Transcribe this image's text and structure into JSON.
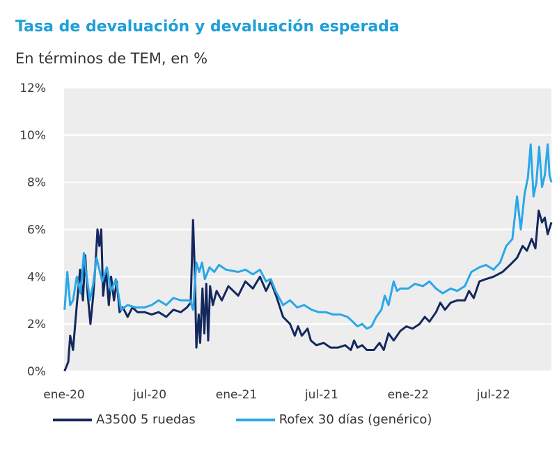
{
  "chart_data": {
    "type": "line",
    "title": "Tasa de devaluación y devaluación esperada",
    "subtitle": "En términos de TEM, en %",
    "xlabel": "",
    "ylabel": "",
    "ylim": [
      0,
      12
    ],
    "grid": "horizontal",
    "legend_position": "bottom",
    "x_range": [
      "2020-01-01",
      "2022-11-01"
    ],
    "x_tick_labels": [
      {
        "date": "2020-01-01",
        "label": "ene-20"
      },
      {
        "date": "2020-07-01",
        "label": "jul-20"
      },
      {
        "date": "2021-01-01",
        "label": "ene-21"
      },
      {
        "date": "2021-07-01",
        "label": "jul-21"
      },
      {
        "date": "2022-01-01",
        "label": "ene-22"
      },
      {
        "date": "2022-07-01",
        "label": "jul-22"
      }
    ],
    "y_ticks": [
      {
        "value": 0,
        "label": "0%"
      },
      {
        "value": 2,
        "label": "2%"
      },
      {
        "value": 4,
        "label": "4%"
      },
      {
        "value": 6,
        "label": "6%"
      },
      {
        "value": 8,
        "label": "8%"
      },
      {
        "value": 10,
        "label": "10%"
      },
      {
        "value": 12,
        "label": "12%"
      }
    ],
    "series": [
      {
        "name": "A3500 5 ruedas",
        "color": "#14285e",
        "points": [
          [
            "2020-01-02",
            0.0
          ],
          [
            "2020-01-10",
            0.4
          ],
          [
            "2020-01-14",
            1.5
          ],
          [
            "2020-01-20",
            0.9
          ],
          [
            "2020-01-28",
            2.8
          ],
          [
            "2020-02-04",
            4.3
          ],
          [
            "2020-02-10",
            3.0
          ],
          [
            "2020-02-15",
            4.9
          ],
          [
            "2020-02-20",
            3.3
          ],
          [
            "2020-02-26",
            2.0
          ],
          [
            "2020-03-03",
            3.2
          ],
          [
            "2020-03-08",
            4.6
          ],
          [
            "2020-03-12",
            6.0
          ],
          [
            "2020-03-16",
            5.3
          ],
          [
            "2020-03-20",
            6.0
          ],
          [
            "2020-03-24",
            3.2
          ],
          [
            "2020-03-30",
            4.3
          ],
          [
            "2020-04-05",
            2.8
          ],
          [
            "2020-04-10",
            4.0
          ],
          [
            "2020-04-16",
            3.0
          ],
          [
            "2020-04-22",
            3.8
          ],
          [
            "2020-04-28",
            2.5
          ],
          [
            "2020-05-05",
            2.7
          ],
          [
            "2020-05-15",
            2.3
          ],
          [
            "2020-05-25",
            2.7
          ],
          [
            "2020-06-05",
            2.5
          ],
          [
            "2020-06-20",
            2.5
          ],
          [
            "2020-07-05",
            2.4
          ],
          [
            "2020-07-20",
            2.5
          ],
          [
            "2020-08-05",
            2.3
          ],
          [
            "2020-08-20",
            2.6
          ],
          [
            "2020-09-05",
            2.5
          ],
          [
            "2020-09-18",
            2.7
          ],
          [
            "2020-09-26",
            2.9
          ],
          [
            "2020-10-01",
            6.4
          ],
          [
            "2020-10-05",
            4.0
          ],
          [
            "2020-10-08",
            1.0
          ],
          [
            "2020-10-13",
            2.4
          ],
          [
            "2020-10-16",
            1.2
          ],
          [
            "2020-10-21",
            3.5
          ],
          [
            "2020-10-25",
            1.6
          ],
          [
            "2020-10-29",
            3.7
          ],
          [
            "2020-11-02",
            1.3
          ],
          [
            "2020-11-06",
            3.6
          ],
          [
            "2020-11-12",
            2.8
          ],
          [
            "2020-11-20",
            3.4
          ],
          [
            "2020-12-01",
            3.0
          ],
          [
            "2020-12-15",
            3.6
          ],
          [
            "2021-01-05",
            3.2
          ],
          [
            "2021-01-20",
            3.8
          ],
          [
            "2021-02-05",
            3.5
          ],
          [
            "2021-02-20",
            4.0
          ],
          [
            "2021-03-05",
            3.4
          ],
          [
            "2021-03-15",
            3.8
          ],
          [
            "2021-03-28",
            3.1
          ],
          [
            "2021-04-10",
            2.3
          ],
          [
            "2021-04-25",
            2.0
          ],
          [
            "2021-05-05",
            1.5
          ],
          [
            "2021-05-12",
            1.9
          ],
          [
            "2021-05-20",
            1.5
          ],
          [
            "2021-06-01",
            1.8
          ],
          [
            "2021-06-08",
            1.3
          ],
          [
            "2021-06-20",
            1.1
          ],
          [
            "2021-07-05",
            1.2
          ],
          [
            "2021-07-20",
            1.0
          ],
          [
            "2021-08-05",
            1.0
          ],
          [
            "2021-08-20",
            1.1
          ],
          [
            "2021-09-01",
            0.9
          ],
          [
            "2021-09-08",
            1.3
          ],
          [
            "2021-09-15",
            1.0
          ],
          [
            "2021-09-25",
            1.1
          ],
          [
            "2021-10-05",
            0.9
          ],
          [
            "2021-10-20",
            0.9
          ],
          [
            "2021-11-01",
            1.2
          ],
          [
            "2021-11-10",
            0.9
          ],
          [
            "2021-11-20",
            1.6
          ],
          [
            "2021-12-01",
            1.3
          ],
          [
            "2021-12-15",
            1.7
          ],
          [
            "2021-12-28",
            1.9
          ],
          [
            "2022-01-10",
            1.8
          ],
          [
            "2022-01-25",
            2.0
          ],
          [
            "2022-02-05",
            2.3
          ],
          [
            "2022-02-15",
            2.1
          ],
          [
            "2022-03-01",
            2.5
          ],
          [
            "2022-03-10",
            2.9
          ],
          [
            "2022-03-20",
            2.6
          ],
          [
            "2022-04-01",
            2.9
          ],
          [
            "2022-04-15",
            3.0
          ],
          [
            "2022-05-01",
            3.0
          ],
          [
            "2022-05-10",
            3.4
          ],
          [
            "2022-05-20",
            3.1
          ],
          [
            "2022-06-01",
            3.8
          ],
          [
            "2022-06-15",
            3.9
          ],
          [
            "2022-07-01",
            4.0
          ],
          [
            "2022-07-20",
            4.2
          ],
          [
            "2022-08-05",
            4.5
          ],
          [
            "2022-08-20",
            4.8
          ],
          [
            "2022-09-01",
            5.3
          ],
          [
            "2022-09-10",
            5.1
          ],
          [
            "2022-09-20",
            5.6
          ],
          [
            "2022-09-28",
            5.2
          ],
          [
            "2022-10-05",
            6.8
          ],
          [
            "2022-10-12",
            6.3
          ],
          [
            "2022-10-18",
            6.5
          ],
          [
            "2022-10-24",
            5.8
          ],
          [
            "2022-11-01",
            6.3
          ]
        ]
      },
      {
        "name": "Rofex 30 días (genérico)",
        "color": "#2aa7e8",
        "points": [
          [
            "2020-01-02",
            2.6
          ],
          [
            "2020-01-08",
            4.2
          ],
          [
            "2020-01-14",
            2.8
          ],
          [
            "2020-01-20",
            3.0
          ],
          [
            "2020-01-28",
            4.0
          ],
          [
            "2020-02-05",
            3.3
          ],
          [
            "2020-02-12",
            5.0
          ],
          [
            "2020-02-18",
            4.0
          ],
          [
            "2020-02-25",
            3.0
          ],
          [
            "2020-03-03",
            3.7
          ],
          [
            "2020-03-10",
            4.8
          ],
          [
            "2020-03-16",
            4.3
          ],
          [
            "2020-03-22",
            3.8
          ],
          [
            "2020-04-01",
            4.4
          ],
          [
            "2020-04-10",
            3.4
          ],
          [
            "2020-04-20",
            3.9
          ],
          [
            "2020-05-01",
            2.6
          ],
          [
            "2020-05-15",
            2.8
          ],
          [
            "2020-06-01",
            2.7
          ],
          [
            "2020-06-20",
            2.7
          ],
          [
            "2020-07-05",
            2.8
          ],
          [
            "2020-07-20",
            3.0
          ],
          [
            "2020-08-05",
            2.8
          ],
          [
            "2020-08-20",
            3.1
          ],
          [
            "2020-09-05",
            3.0
          ],
          [
            "2020-09-25",
            3.0
          ],
          [
            "2020-10-01",
            2.6
          ],
          [
            "2020-10-08",
            4.6
          ],
          [
            "2020-10-14",
            4.2
          ],
          [
            "2020-10-20",
            4.6
          ],
          [
            "2020-10-26",
            3.9
          ],
          [
            "2020-11-05",
            4.4
          ],
          [
            "2020-11-15",
            4.2
          ],
          [
            "2020-11-25",
            4.5
          ],
          [
            "2020-12-10",
            4.3
          ],
          [
            "2021-01-05",
            4.2
          ],
          [
            "2021-01-20",
            4.3
          ],
          [
            "2021-02-05",
            4.1
          ],
          [
            "2021-02-20",
            4.3
          ],
          [
            "2021-03-05",
            3.8
          ],
          [
            "2021-03-15",
            3.9
          ],
          [
            "2021-03-25",
            3.4
          ],
          [
            "2021-04-10",
            2.8
          ],
          [
            "2021-04-25",
            3.0
          ],
          [
            "2021-05-10",
            2.7
          ],
          [
            "2021-05-25",
            2.8
          ],
          [
            "2021-06-10",
            2.6
          ],
          [
            "2021-06-25",
            2.5
          ],
          [
            "2021-07-10",
            2.5
          ],
          [
            "2021-07-25",
            2.4
          ],
          [
            "2021-08-10",
            2.4
          ],
          [
            "2021-08-25",
            2.3
          ],
          [
            "2021-09-05",
            2.1
          ],
          [
            "2021-09-15",
            1.9
          ],
          [
            "2021-09-25",
            2.0
          ],
          [
            "2021-10-05",
            1.8
          ],
          [
            "2021-10-15",
            1.9
          ],
          [
            "2021-10-25",
            2.3
          ],
          [
            "2021-11-05",
            2.6
          ],
          [
            "2021-11-12",
            3.2
          ],
          [
            "2021-11-20",
            2.8
          ],
          [
            "2021-12-01",
            3.8
          ],
          [
            "2021-12-08",
            3.4
          ],
          [
            "2021-12-15",
            3.5
          ],
          [
            "2022-01-01",
            3.5
          ],
          [
            "2022-01-15",
            3.7
          ],
          [
            "2022-02-01",
            3.6
          ],
          [
            "2022-02-15",
            3.8
          ],
          [
            "2022-03-01",
            3.5
          ],
          [
            "2022-03-15",
            3.3
          ],
          [
            "2022-04-01",
            3.5
          ],
          [
            "2022-04-15",
            3.4
          ],
          [
            "2022-05-01",
            3.6
          ],
          [
            "2022-05-15",
            4.2
          ],
          [
            "2022-06-01",
            4.4
          ],
          [
            "2022-06-15",
            4.5
          ],
          [
            "2022-07-01",
            4.3
          ],
          [
            "2022-07-15",
            4.6
          ],
          [
            "2022-07-28",
            5.3
          ],
          [
            "2022-08-10",
            5.6
          ],
          [
            "2022-08-20",
            7.4
          ],
          [
            "2022-08-28",
            6.0
          ],
          [
            "2022-09-05",
            7.5
          ],
          [
            "2022-09-12",
            8.2
          ],
          [
            "2022-09-18",
            9.6
          ],
          [
            "2022-09-24",
            7.4
          ],
          [
            "2022-09-30",
            8.0
          ],
          [
            "2022-10-06",
            9.5
          ],
          [
            "2022-10-12",
            7.8
          ],
          [
            "2022-10-18",
            8.3
          ],
          [
            "2022-10-24",
            9.6
          ],
          [
            "2022-10-28",
            8.3
          ],
          [
            "2022-11-01",
            8.0
          ]
        ]
      }
    ]
  }
}
